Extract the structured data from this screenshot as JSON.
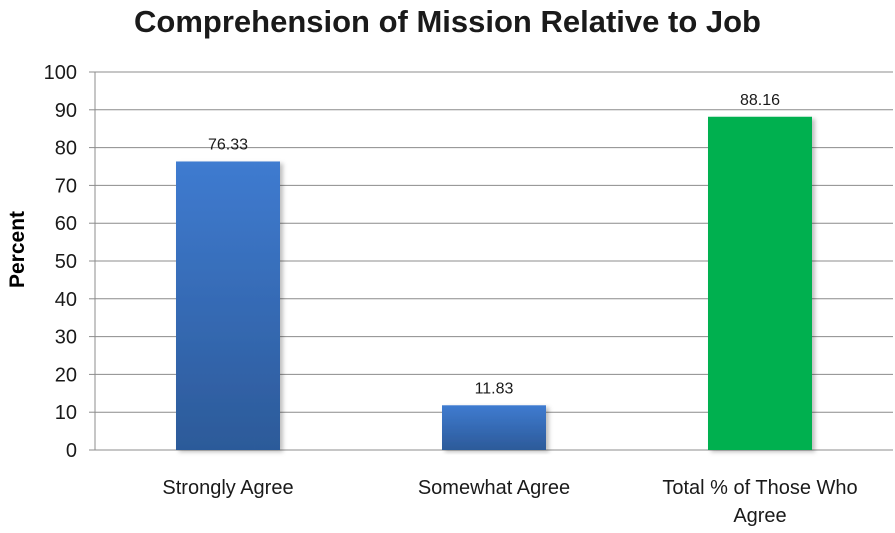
{
  "chart_data": {
    "type": "bar",
    "title": "Comprehension of Mission Relative to Job",
    "xlabel": "",
    "ylabel": "Percent",
    "ylim": [
      0,
      100
    ],
    "y_ticks": [
      0,
      10,
      20,
      30,
      40,
      50,
      60,
      70,
      80,
      90,
      100
    ],
    "grid": true,
    "categories": [
      "Strongly Agree",
      "Somewhat Agree",
      "Total % of Those Who Agree"
    ],
    "category_lines": [
      [
        "Strongly Agree"
      ],
      [
        "Somewhat Agree"
      ],
      [
        "Total % of Those Who",
        "Agree"
      ]
    ],
    "values": [
      76.33,
      11.83,
      88.16
    ],
    "data_labels": [
      "76.33",
      "11.83",
      "88.16"
    ],
    "bar_colors": [
      "#3b73c0",
      "#3b73c0",
      "#00b050"
    ]
  }
}
